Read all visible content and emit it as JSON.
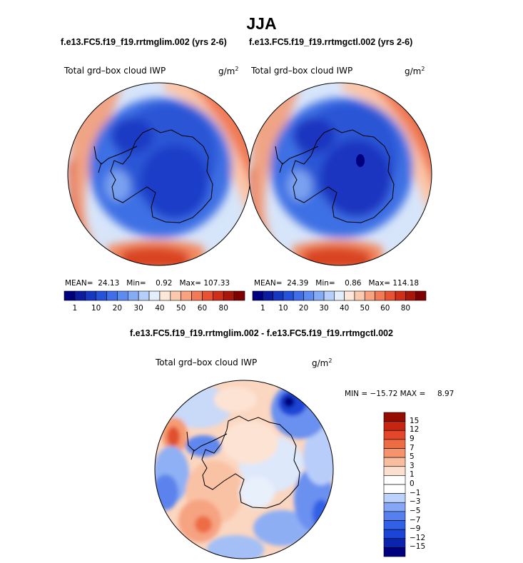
{
  "figure": {
    "title": "JJA",
    "panel_left": {
      "run": "f.e13.FC5.f19_f19.rrtmglim.002 (yrs 2-6)",
      "variable": "Total grd–box cloud IWP",
      "units": "g/m",
      "units_exp": "2",
      "mean_label": "MEAN=",
      "mean": "24.13",
      "min_label": "Min=",
      "min": "0.92",
      "max_label": "Max=",
      "max": "107.33"
    },
    "panel_right": {
      "run": "f.e13.FC5.f19_f19.rrtmgctl.002 (yrs 2-6)",
      "variable": "Total grd–box cloud IWP",
      "units": "g/m",
      "units_exp": "2",
      "mean_label": "MEAN=",
      "mean": "24.39",
      "min_label": "Min=",
      "min": "0.86",
      "max_label": "Max=",
      "max": "114.18"
    },
    "panel_diff": {
      "run": "f.e13.FC5.f19_f19.rrtmglim.002 - f.e13.FC5.f19_f19.rrtmgctl.002",
      "variable": "Total grd–box cloud IWP",
      "units": "g/m",
      "units_exp": "2",
      "minmax_text": "MIN = −15.72 MAX =     8.97"
    },
    "abs_colorbar": {
      "colors": [
        "#00007f",
        "#0a1ca0",
        "#1637c2",
        "#2452db",
        "#3f6ee8",
        "#5e8bf0",
        "#86abf5",
        "#b6cffa",
        "#e2eefc",
        "#fde7d9",
        "#fbc9ad",
        "#f8a27f",
        "#f27a55",
        "#e85233",
        "#cf2f17",
        "#a8170a",
        "#7f0000"
      ],
      "ticks": [
        "1",
        "10",
        "20",
        "30",
        "40",
        "50",
        "60",
        "80"
      ]
    },
    "diff_colorbar": {
      "colors": [
        "#00007f",
        "#0b24b0",
        "#1a45d6",
        "#3260e6",
        "#567fef",
        "#86a7f6",
        "#bcd2fb",
        "#ffffff",
        "#ffffff",
        "#fce0cf",
        "#f9be9f",
        "#f5946c",
        "#ee6c44",
        "#e3462a",
        "#c52511",
        "#940d00"
      ],
      "labels": [
        "15",
        "12",
        "9",
        "7",
        "5",
        "3",
        "1",
        "0",
        "−1",
        "−3",
        "−5",
        "−7",
        "−9",
        "−12",
        "−15"
      ]
    }
  }
}
